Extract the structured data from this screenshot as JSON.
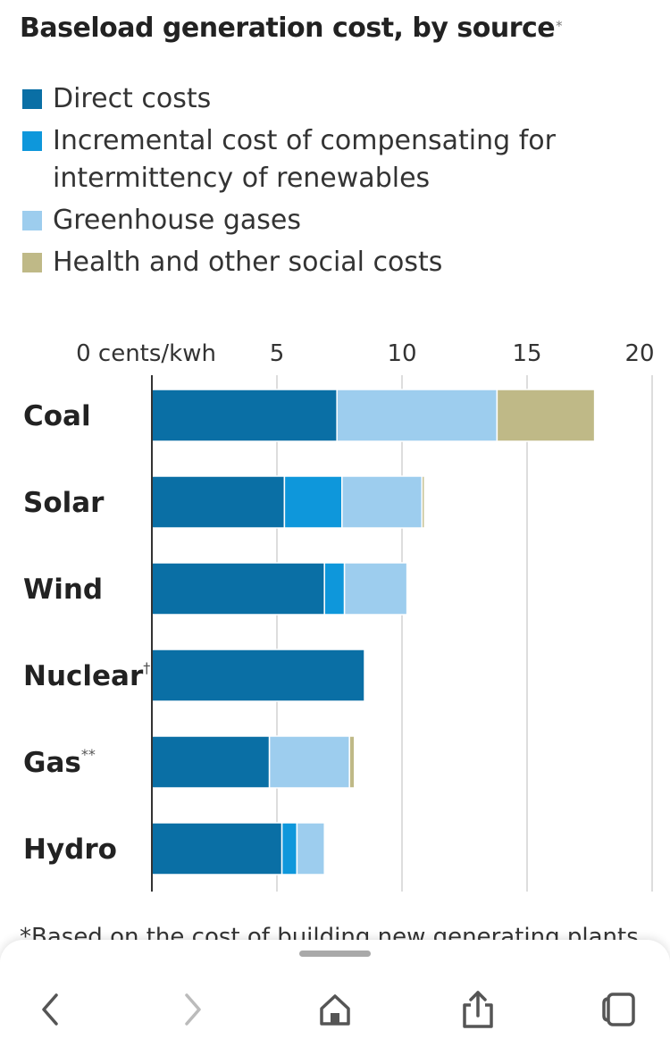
{
  "chart_data": {
    "type": "bar",
    "stacked": true,
    "orientation": "horizontal",
    "title": "Baseload generation cost, by source",
    "title_mark": "*",
    "xlabel": "cents/kwh",
    "xlim": [
      0,
      20
    ],
    "xticks": [
      0,
      5,
      10,
      15,
      20
    ],
    "xtick_labels": [
      "0 cents/kwh",
      "5",
      "10",
      "15",
      "20"
    ],
    "grid": true,
    "legend_position": "top",
    "categories": [
      "Coal",
      "Solar",
      "Wind",
      "Nuclear",
      "Gas",
      "Hydro"
    ],
    "category_marks": [
      "",
      "",
      "",
      "†",
      "**",
      ""
    ],
    "series": [
      {
        "name": "Direct costs",
        "color": "#0a6fa5",
        "values": [
          7.4,
          5.3,
          6.9,
          8.5,
          4.7,
          5.2
        ]
      },
      {
        "name": "Incremental cost of compensating for intermittency of renewables",
        "color": "#0e97db",
        "values": [
          0,
          2.3,
          0.8,
          0,
          0,
          0.6
        ]
      },
      {
        "name": "Greenhouse gases",
        "color": "#9dcdee",
        "values": [
          6.4,
          3.2,
          2.5,
          0,
          3.2,
          1.1
        ]
      },
      {
        "name": "Health and other social costs",
        "color": "#bfb987",
        "values": [
          3.9,
          0.1,
          0,
          0,
          0.2,
          0
        ]
      }
    ]
  },
  "footnote": "*Based on the cost of building new generating plants",
  "icons": [
    "back-icon",
    "forward-icon",
    "home-icon",
    "share-icon",
    "tabs-icon"
  ]
}
